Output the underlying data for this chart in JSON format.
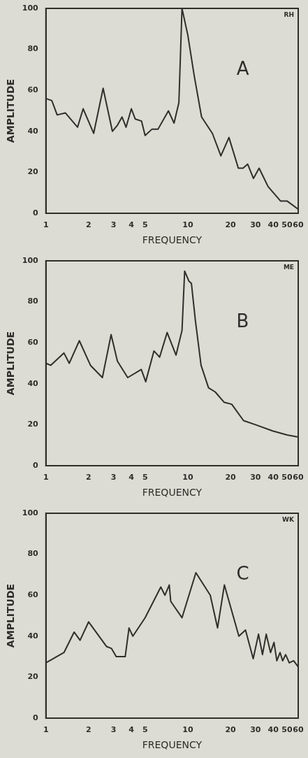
{
  "chart_data": [
    {
      "type": "line",
      "xlabel": "FREQUENCY",
      "ylabel": "AMPLITUDE",
      "annotations": [
        "A",
        "RH"
      ],
      "log": "x",
      "color": "#2e2e2b",
      "x": [
        1,
        1.1,
        1.2,
        1.37,
        1.67,
        1.83,
        2.17,
        2.53,
        2.94,
        3.19,
        3.44,
        3.67,
        4.0,
        4.26,
        4.72,
        5.0,
        5.58,
        6.16,
        7.3,
        8.0,
        8.65,
        9.1,
        10,
        11.1,
        12.5,
        14.9,
        17.1,
        19.5,
        22.7,
        24.5,
        26.4,
        29,
        31.8,
        36.8,
        45,
        50,
        60
      ],
      "values": [
        56,
        55,
        48,
        49,
        42,
        51,
        39,
        61,
        40,
        43,
        47,
        42,
        51,
        46,
        45,
        38,
        41,
        41,
        50,
        44,
        54,
        100,
        87,
        67,
        47,
        39,
        28,
        37,
        22,
        22,
        24,
        17,
        22,
        13,
        6,
        6,
        2
      ],
      "xlim": [
        1,
        60
      ],
      "xticks": [
        1,
        2,
        3,
        4,
        5,
        10,
        20,
        30,
        40,
        50,
        60
      ],
      "ylim": [
        0,
        100
      ],
      "yticks": [
        0,
        20,
        40,
        60,
        80,
        100
      ]
    },
    {
      "type": "line",
      "xlabel": "FREQUENCY",
      "ylabel": "AMPLITUDE",
      "annotations": [
        "B",
        "ME"
      ],
      "log": "x",
      "color": "#2e2e2b",
      "x": [
        1,
        1.08,
        1.34,
        1.46,
        1.72,
        2.06,
        2.5,
        2.88,
        3.19,
        3.77,
        4.7,
        5.05,
        5.77,
        6.33,
        7.15,
        8.26,
        9.1,
        9.5,
        10.2,
        10.6,
        11.3,
        12.4,
        14,
        15.6,
        18,
        20.4,
        24.7,
        30,
        39.6,
        50,
        60
      ],
      "values": [
        50,
        49,
        55,
        50,
        61,
        49,
        43,
        64,
        51,
        43,
        47,
        41,
        56,
        53,
        65,
        54,
        66,
        95,
        90,
        89,
        71,
        49,
        38,
        36,
        31,
        30,
        22,
        20,
        17,
        15,
        14
      ],
      "xlim": [
        1,
        60
      ],
      "xticks": [
        1,
        2,
        3,
        4,
        5,
        10,
        20,
        30,
        40,
        50,
        60
      ],
      "ylim": [
        0,
        100
      ],
      "yticks": [
        0,
        20,
        40,
        60,
        80,
        100
      ]
    },
    {
      "type": "line",
      "xlabel": "FREQUENCY",
      "ylabel": "AMPLITUDE",
      "annotations": [
        "C",
        "WK"
      ],
      "log": "x",
      "color": "#2e2e2b",
      "x": [
        1,
        1.34,
        1.58,
        1.74,
        2,
        2.67,
        2.9,
        3.13,
        3.62,
        3.85,
        4.1,
        5,
        6.45,
        6.9,
        7.4,
        7.58,
        9.1,
        11.4,
        14.4,
        16.2,
        18.1,
        22.9,
        25.5,
        28.9,
        31.5,
        33.6,
        35.7,
        38.3,
        40.5,
        42.4,
        44.7,
        46.6,
        48.9,
        51.9,
        55.7,
        60
      ],
      "values": [
        27,
        32,
        42,
        38,
        47,
        35,
        34,
        30,
        30,
        44,
        40,
        49,
        64,
        60,
        65,
        57,
        49,
        71,
        60,
        44,
        65,
        40,
        43,
        29,
        41,
        31,
        41,
        32,
        37,
        28,
        32,
        28,
        31,
        27,
        28,
        25
      ],
      "xlim": [
        1,
        60
      ],
      "xticks": [
        1,
        2,
        3,
        4,
        5,
        10,
        20,
        30,
        40,
        50,
        60
      ],
      "ylim": [
        0,
        100
      ],
      "yticks": [
        0,
        20,
        40,
        60,
        80,
        100
      ]
    }
  ]
}
